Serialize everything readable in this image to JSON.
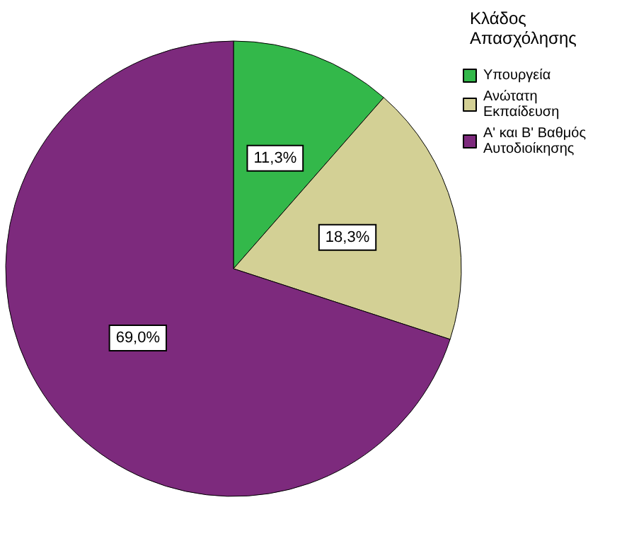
{
  "chart_data": {
    "type": "pie",
    "legend_title": "Κλάδος Απασχόλησης",
    "categories": [
      "Υπουργεία",
      "Ανώτατη Εκπαίδευση",
      "Α' και Β' Βαθμός Αυτοδιοίκησης"
    ],
    "values": [
      11.3,
      18.3,
      69.0
    ],
    "value_labels": [
      "11,3%",
      "18,3%",
      "69,0%"
    ],
    "colors": [
      "#33b84a",
      "#d3d095",
      "#7d2a7d"
    ],
    "legend": "top right"
  }
}
